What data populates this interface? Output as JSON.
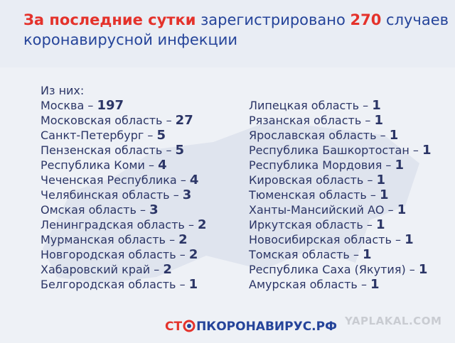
{
  "header": {
    "title_parts": [
      {
        "text": "За последние сутки",
        "accent": true
      },
      {
        "text": " зарегистрировано ",
        "accent": false
      },
      {
        "text": "270",
        "accent": true
      },
      {
        "text": " случаев",
        "accent": false
      }
    ],
    "title_line2": "коронавирусной инфекции"
  },
  "list_intro": "Из них:",
  "separator": "–",
  "columns": [
    [
      {
        "name": "Москва",
        "count": 197
      },
      {
        "name": "Московская область",
        "count": 27
      },
      {
        "name": "Санкт-Петербург",
        "count": 5
      },
      {
        "name": "Пензенская область",
        "count": 5
      },
      {
        "name": "Республика Коми",
        "count": 4
      },
      {
        "name": "Чеченская Республика",
        "count": 4
      },
      {
        "name": "Челябинская область",
        "count": 3
      },
      {
        "name": "Омская область",
        "count": 3
      },
      {
        "name": "Ленинградская область",
        "count": 2
      },
      {
        "name": "Мурманская область",
        "count": 2
      },
      {
        "name": "Новгородская область",
        "count": 2
      },
      {
        "name": "Хабаровский край",
        "count": 2
      },
      {
        "name": "Белгородская область",
        "count": 1
      }
    ],
    [
      {
        "name": "Липецкая область",
        "count": 1
      },
      {
        "name": "Рязанская область",
        "count": 1
      },
      {
        "name": "Ярославская область",
        "count": 1
      },
      {
        "name": "Республика Башкортостан",
        "count": 1
      },
      {
        "name": "Республика Мордовия",
        "count": 1
      },
      {
        "name": "Кировская область",
        "count": 1
      },
      {
        "name": "Тюменская область",
        "count": 1
      },
      {
        "name": "Ханты-Мансийский АО",
        "count": 1
      },
      {
        "name": "Иркутская область",
        "count": 1
      },
      {
        "name": "Новосибирская область",
        "count": 1
      },
      {
        "name": "Томская область",
        "count": 1
      },
      {
        "name": "Республика Саха (Якутия)",
        "count": 1
      },
      {
        "name": "Амурская область",
        "count": 1
      }
    ]
  ],
  "footer": {
    "logo_start": "СТ",
    "logo_end": "ПКОРОНАВИРУС.РФ"
  },
  "watermark": "YAPLAKAL.COM"
}
